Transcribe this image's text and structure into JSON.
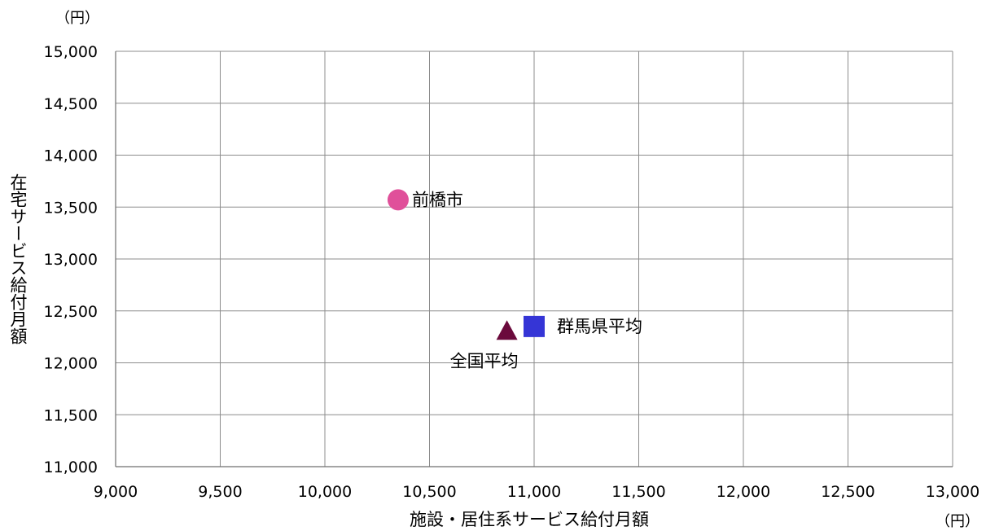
{
  "chart_data": {
    "type": "scatter",
    "xlabel": "施設・居住系サービス給付月額",
    "ylabel": "在宅サービス給付月額",
    "x_unit": "（円）",
    "y_unit": "（円）",
    "xlim": [
      9000,
      13000
    ],
    "ylim": [
      11000,
      15000
    ],
    "x_ticks": [
      9000,
      9500,
      10000,
      10500,
      11000,
      11500,
      12000,
      12500,
      13000
    ],
    "y_ticks": [
      11000,
      11500,
      12000,
      12500,
      13000,
      13500,
      14000,
      14500,
      15000
    ],
    "x_tick_labels": [
      "9,000",
      "9,500",
      "10,000",
      "10,500",
      "11,000",
      "11,500",
      "12,000",
      "12,500",
      "13,000"
    ],
    "y_tick_labels": [
      "11,000",
      "11,500",
      "12,000",
      "12,500",
      "13,000",
      "13,500",
      "14,000",
      "14,500",
      "15,000"
    ],
    "grid": true,
    "points": [
      {
        "label": "前橋市",
        "x": 10350,
        "y": 13570,
        "marker": "circle",
        "color": "#e0509a",
        "label_position": "right"
      },
      {
        "label": "群馬県平均",
        "x": 11000,
        "y": 12350,
        "marker": "square",
        "color": "#3535d6",
        "label_position": "right"
      },
      {
        "label": "全国平均",
        "x": 10870,
        "y": 12300,
        "marker": "triangle",
        "color": "#6b0a3c",
        "label_position": "below-left"
      }
    ]
  }
}
